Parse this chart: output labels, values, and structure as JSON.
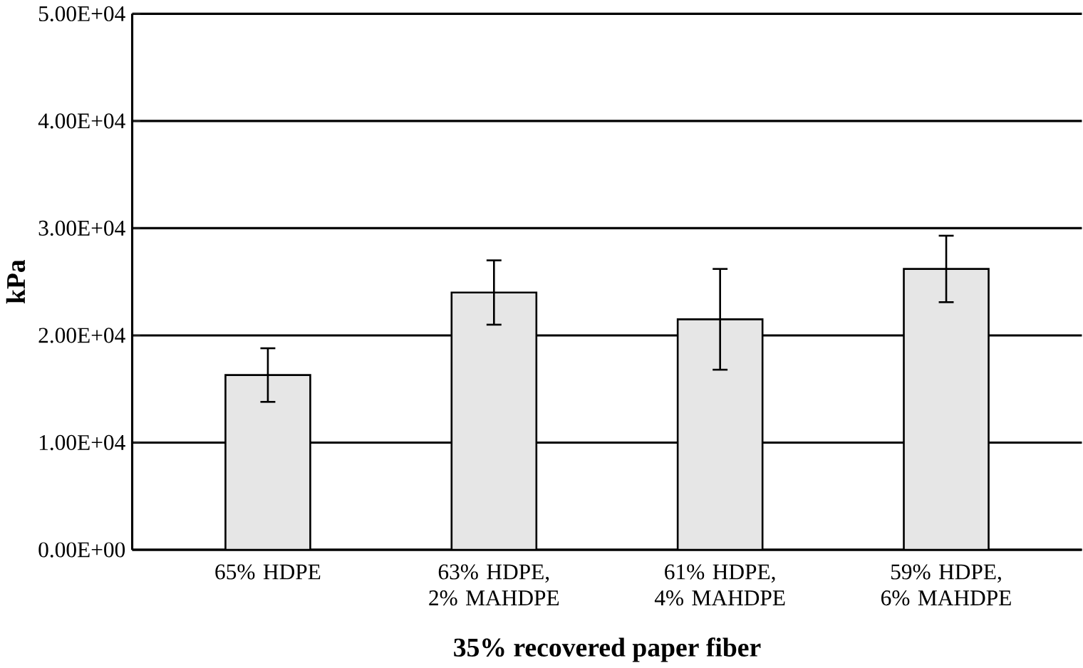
{
  "chart_data": {
    "type": "bar",
    "xlabel": "35% recovered paper fiber",
    "ylabel": "kPa",
    "categories": [
      "65% HDPE",
      "63% HDPE, 2% MAHDPE",
      "61% HDPE, 4% MAHDPE",
      "59% HDPE, 6% MAHDPE"
    ],
    "values": [
      16300,
      24000,
      21500,
      26200
    ],
    "errors": [
      2500,
      3000,
      4700,
      3100
    ],
    "color": "#e6e6e6",
    "ylim": [
      0,
      50000
    ],
    "yticks": [
      {
        "value": 0,
        "label": "0.00E+00"
      },
      {
        "value": 10000,
        "label": "1.00E+04"
      },
      {
        "value": 20000,
        "label": "2.00E+04"
      },
      {
        "value": 30000,
        "label": "3.00E+04"
      },
      {
        "value": 40000,
        "label": "4.00E+04"
      },
      {
        "value": 50000,
        "label": "5.00E+04"
      }
    ],
    "grid": "y"
  }
}
